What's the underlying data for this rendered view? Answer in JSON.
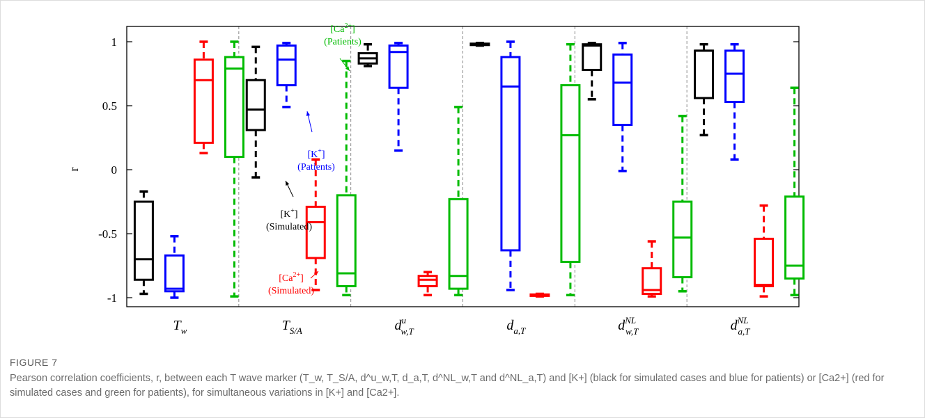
{
  "figure": {
    "label": "FIGURE 7",
    "caption": "Pearson correlation coefficients, r, between each T wave marker (T_w, T_S/A, d^u_w,T, d_a,T, d^NL_w,T and d^NL_a,T) and [K+] (black for simulated cases and blue for patients) or [Ca2+] (red for simulated cases and green for patients), for simultaneous variations in [K+] and [Ca2+]."
  },
  "colors": {
    "k_simulated": "#000000",
    "k_patients": "#0000ff",
    "ca_simulated": "#ff0000",
    "ca_patients": "#00bb00"
  },
  "chart_data": {
    "type": "box",
    "ylabel": "r",
    "ylim": [
      -1.05,
      1.1
    ],
    "yticks": [
      "1",
      "0.5",
      "0",
      "-0.5",
      "-1"
    ],
    "ytick_values": [
      1,
      0.5,
      0,
      -0.5,
      -1
    ],
    "categories": [
      {
        "base": "T",
        "sub": "w",
        "sup": ""
      },
      {
        "base": "T",
        "sub": "S/A",
        "sup": ""
      },
      {
        "base": "d",
        "sub": "w,T",
        "sup": "u"
      },
      {
        "base": "d",
        "sub": "a,T",
        "sup": ""
      },
      {
        "base": "d",
        "sub": "w,T",
        "sup": "NL"
      },
      {
        "base": "d",
        "sub": "a,T",
        "sup": "NL"
      }
    ],
    "series": [
      {
        "name": "[K+] (Simulated)",
        "color_key": "k_simulated",
        "boxes": [
          {
            "min": -0.97,
            "q1": -0.86,
            "median": -0.7,
            "q3": -0.25,
            "max": -0.17
          },
          {
            "min": -0.06,
            "q1": 0.31,
            "median": 0.47,
            "q3": 0.7,
            "max": 0.96
          },
          {
            "min": 0.81,
            "q1": 0.83,
            "median": 0.87,
            "q3": 0.91,
            "max": 0.98
          },
          {
            "min": 0.97,
            "q1": 0.975,
            "median": 0.98,
            "q3": 0.985,
            "max": 0.99
          },
          {
            "min": 0.55,
            "q1": 0.78,
            "median": 0.97,
            "q3": 0.98,
            "max": 0.99
          },
          {
            "min": 0.27,
            "q1": 0.56,
            "median": 0.93,
            "q3": 0.93,
            "max": 0.98
          }
        ]
      },
      {
        "name": "[K+] (Patients)",
        "color_key": "k_patients",
        "boxes": [
          {
            "min": -1.0,
            "q1": -0.95,
            "median": -0.93,
            "q3": -0.67,
            "max": -0.52
          },
          {
            "min": 0.49,
            "q1": 0.66,
            "median": 0.86,
            "q3": 0.97,
            "max": 0.99
          },
          {
            "min": 0.15,
            "q1": 0.64,
            "median": 0.92,
            "q3": 0.97,
            "max": 0.99
          },
          {
            "min": -0.94,
            "q1": -0.63,
            "median": 0.65,
            "q3": 0.88,
            "max": 1.0
          },
          {
            "min": -0.01,
            "q1": 0.35,
            "median": 0.68,
            "q3": 0.9,
            "max": 0.99
          },
          {
            "min": 0.08,
            "q1": 0.53,
            "median": 0.75,
            "q3": 0.93,
            "max": 0.98
          }
        ]
      },
      {
        "name": "[Ca2+] (Simulated)",
        "color_key": "ca_simulated",
        "boxes": [
          {
            "min": 0.13,
            "q1": 0.21,
            "median": 0.7,
            "q3": 0.86,
            "max": 1.0
          },
          {
            "min": -0.94,
            "q1": -0.69,
            "median": -0.41,
            "q3": -0.29,
            "max": 0.08
          },
          {
            "min": -0.98,
            "q1": -0.91,
            "median": -0.86,
            "q3": -0.83,
            "max": -0.8
          },
          {
            "min": -0.99,
            "q1": -0.985,
            "median": -0.98,
            "q3": -0.975,
            "max": -0.97
          },
          {
            "min": -0.99,
            "q1": -0.97,
            "median": -0.94,
            "q3": -0.77,
            "max": -0.56
          },
          {
            "min": -0.99,
            "q1": -0.91,
            "median": -0.9,
            "q3": -0.54,
            "max": -0.28
          }
        ]
      },
      {
        "name": "[Ca2+] (Patients)",
        "color_key": "ca_patients",
        "boxes": [
          {
            "min": -0.99,
            "q1": 0.1,
            "median": 0.79,
            "q3": 0.88,
            "max": 1.0
          },
          {
            "min": -0.98,
            "q1": -0.91,
            "median": -0.81,
            "q3": -0.2,
            "max": 0.85
          },
          {
            "min": -0.98,
            "q1": -0.93,
            "median": -0.83,
            "q3": -0.23,
            "max": 0.49
          },
          {
            "min": -0.98,
            "q1": -0.72,
            "median": 0.27,
            "q3": 0.66,
            "max": 0.98
          },
          {
            "min": -0.95,
            "q1": -0.84,
            "median": -0.53,
            "q3": -0.25,
            "max": 0.42
          },
          {
            "min": -0.98,
            "q1": -0.85,
            "median": -0.75,
            "q3": -0.21,
            "max": 0.64
          }
        ]
      }
    ],
    "annotations": [
      {
        "lines": [
          "[Ca2+]",
          "(Patients)"
        ],
        "color_key": "ca_patients",
        "category": 1,
        "target_series": 3,
        "target_value": 0.85
      },
      {
        "lines": [
          "[K+]",
          "(Patients)"
        ],
        "color_key": "k_patients",
        "category": 1,
        "target_series": 1,
        "target_value": 0.52
      },
      {
        "lines": [
          "[K+]",
          "(Simulated)"
        ],
        "color_key": "k_simulated",
        "category": 1,
        "target_series": 0,
        "target_value": -0.06
      },
      {
        "lines": [
          "[Ca2+]",
          "(Simulated)"
        ],
        "color_key": "ca_simulated",
        "category": 1,
        "target_series": 2,
        "target_value": -0.94
      }
    ]
  }
}
